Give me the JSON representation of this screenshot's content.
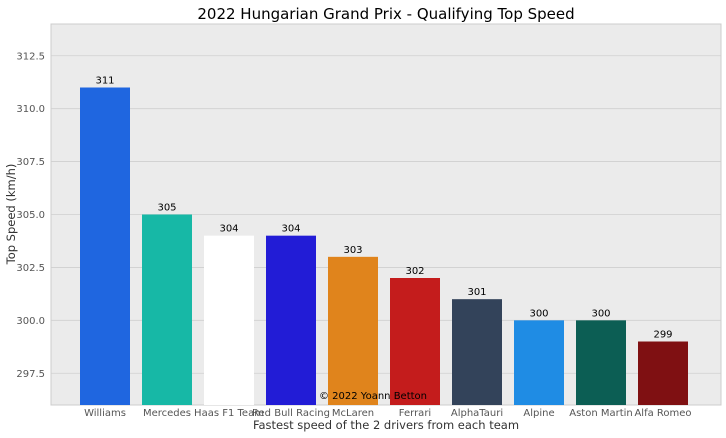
{
  "chart_data": {
    "type": "bar",
    "title": "2022 Hungarian Grand Prix - Qualifying Top Speed",
    "xlabel": "Fastest speed of the 2 drivers from each team",
    "ylabel": "Top Speed (km/h)",
    "ylim": [
      296,
      314
    ],
    "yticks": [
      "297.5",
      "300.0",
      "302.5",
      "305.0",
      "307.5",
      "310.0",
      "312.5"
    ],
    "grid": true,
    "categories": [
      "Williams",
      "Mercedes",
      "Haas F1 Team",
      "Red Bull Racing",
      "McLaren",
      "Ferrari",
      "AlphaTauri",
      "Alpine",
      "Aston Martin",
      "Alfa Romeo"
    ],
    "values": [
      311,
      305,
      304,
      304,
      303,
      302,
      301,
      300,
      300,
      299
    ],
    "labels": [
      "311",
      "305",
      "304",
      "304",
      "303",
      "302",
      "301",
      "300",
      "300",
      "299"
    ],
    "colors": [
      "#1f66e0",
      "#17b8a6",
      "#ffffff",
      "#221cd6",
      "#e0841c",
      "#c41c1c",
      "#33435a",
      "#1f8ce4",
      "#0c5e54",
      "#7f1012"
    ],
    "annotation": "© 2022 Yoann Betton"
  }
}
